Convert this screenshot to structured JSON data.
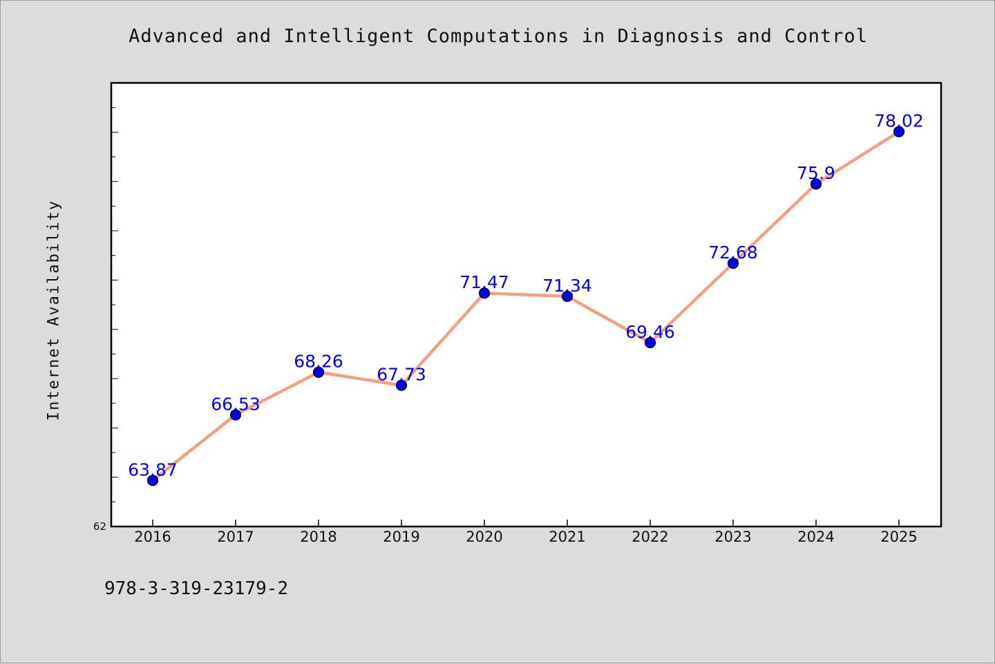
{
  "chart_data": {
    "type": "line",
    "title": "Advanced and Intelligent Computations in Diagnosis and Control",
    "xlabel": "",
    "ylabel": "Internet Availability",
    "categories": [
      "2016",
      "2017",
      "2018",
      "2019",
      "2020",
      "2021",
      "2022",
      "2023",
      "2024",
      "2025"
    ],
    "series": [
      {
        "values": [
          63.87,
          66.53,
          68.26,
          67.73,
          71.47,
          71.34,
          69.46,
          72.68,
          75.9,
          78.02
        ]
      }
    ],
    "ylim": [
      62,
      80
    ],
    "y_tick_labels": [
      "62"
    ],
    "grid": false,
    "line_color": "#f4a07f",
    "marker_color": "#0000ee",
    "label_color": "#0000ee"
  },
  "footer": {
    "isbn": "978-3-319-23179-2"
  }
}
